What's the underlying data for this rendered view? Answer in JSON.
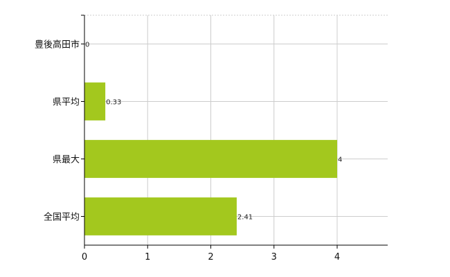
{
  "chart_data": {
    "type": "bar",
    "orientation": "horizontal",
    "categories": [
      "豊後高田市",
      "県平均",
      "県最大",
      "全国平均"
    ],
    "values": [
      0,
      0.33,
      4,
      2.41
    ],
    "data_labels": [
      "0",
      "0.33",
      "4",
      "2.41"
    ],
    "xlim": [
      0,
      4.8
    ],
    "x_ticks": [
      "0",
      "1",
      "2",
      "3",
      "4"
    ],
    "grid": true,
    "bar_color": "#a3c81e"
  }
}
